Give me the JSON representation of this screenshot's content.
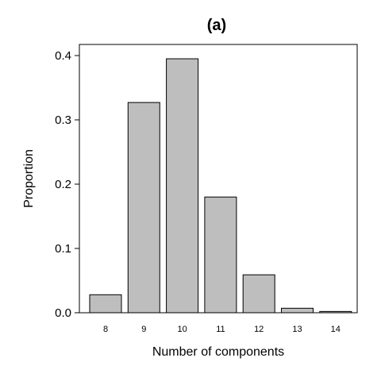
{
  "chart_data": {
    "type": "bar",
    "title": "(a)",
    "xlabel": "Number of components",
    "ylabel": "Proportion",
    "categories": [
      "8",
      "9",
      "10",
      "11",
      "12",
      "13",
      "14"
    ],
    "values": [
      0.028,
      0.327,
      0.395,
      0.18,
      0.059,
      0.007,
      0.002
    ],
    "ylim": [
      0,
      0.4
    ],
    "yticks": [
      "0.0",
      "0.1",
      "0.2",
      "0.3",
      "0.4"
    ],
    "colors": {
      "bar_fill": "#bebebe",
      "bar_stroke": "#000000"
    },
    "grid": false,
    "legend": "none"
  }
}
